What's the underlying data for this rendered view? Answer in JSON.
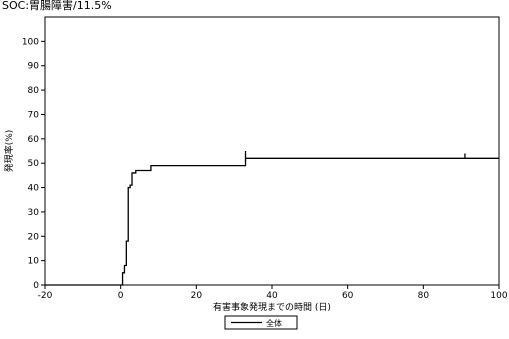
{
  "chart_data": {
    "type": "line",
    "title": "SOC:胃腸障害/11.5%",
    "xlabel": "有害事象発現までの時間 (日)",
    "ylabel": "発現率(%)",
    "xlim": [
      -20,
      100
    ],
    "ylim": [
      0,
      110
    ],
    "x_ticks": [
      -20,
      0,
      20,
      40,
      60,
      80,
      100
    ],
    "y_ticks": [
      0,
      10,
      20,
      30,
      40,
      50,
      60,
      70,
      80,
      90,
      100
    ],
    "grid": false,
    "legend_position": "bottom-center",
    "step": true,
    "series": [
      {
        "name": "全体",
        "color": "#000000",
        "x": [
          -20,
          0,
          0.5,
          1,
          1.5,
          2,
          2.5,
          3,
          4,
          7,
          8,
          33,
          91,
          100
        ],
        "y": [
          0,
          0,
          5,
          8,
          18,
          40,
          41,
          46,
          47,
          47,
          49,
          52,
          52,
          52
        ]
      }
    ],
    "censor_marks": [
      {
        "x": 33,
        "y": 55
      },
      {
        "x": 91,
        "y": 54
      }
    ]
  }
}
